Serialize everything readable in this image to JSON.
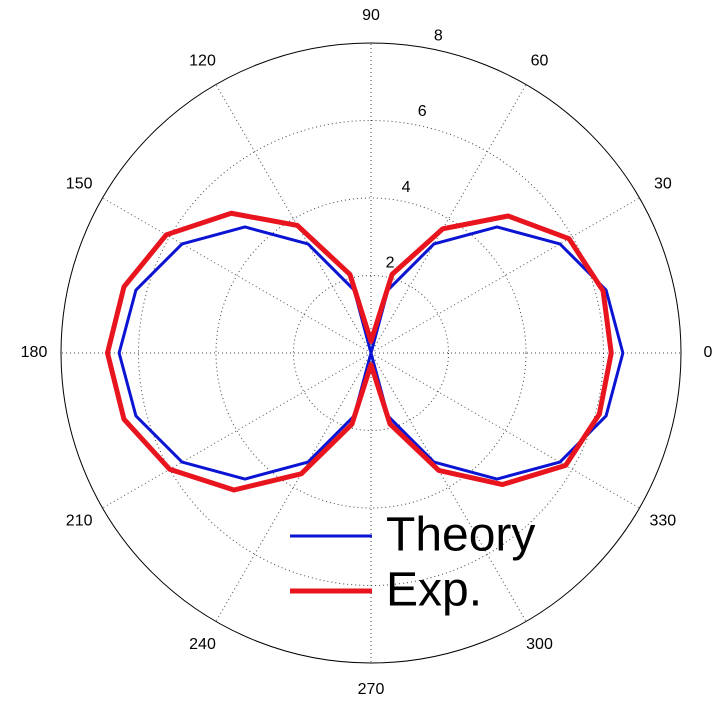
{
  "chart_data": {
    "type": "polar",
    "theta": [
      0,
      15,
      30,
      45,
      60,
      75,
      90,
      105,
      120,
      135,
      150,
      165,
      180,
      195,
      210,
      225,
      240,
      255,
      270,
      285,
      300,
      315,
      330,
      345
    ],
    "series": [
      {
        "name": "Theory",
        "color": "#0a14d2",
        "width": 3,
        "values": [
          6.5,
          6.28,
          5.63,
          4.6,
          3.25,
          1.68,
          0,
          1.68,
          3.25,
          4.6,
          5.63,
          6.28,
          6.5,
          6.28,
          5.63,
          4.6,
          3.25,
          1.68,
          0,
          1.68,
          3.25,
          4.6,
          5.63,
          6.28
        ]
      },
      {
        "name": "Exp.",
        "color": "#e8141e",
        "width": 5,
        "values": [
          6.2,
          6.2,
          5.9,
          5.0,
          3.7,
          2.1,
          0.3,
          2.1,
          3.8,
          5.1,
          6.1,
          6.6,
          6.8,
          6.6,
          6.0,
          5.0,
          3.6,
          1.9,
          0.3,
          1.9,
          3.5,
          4.8,
          5.8,
          6.1
        ]
      }
    ],
    "rlim": [
      0,
      8
    ],
    "rticks": [
      2,
      4,
      6,
      8
    ],
    "thetaticks": [
      0,
      30,
      60,
      90,
      120,
      150,
      180,
      210,
      240,
      270,
      300,
      330
    ],
    "grid": true
  }
}
